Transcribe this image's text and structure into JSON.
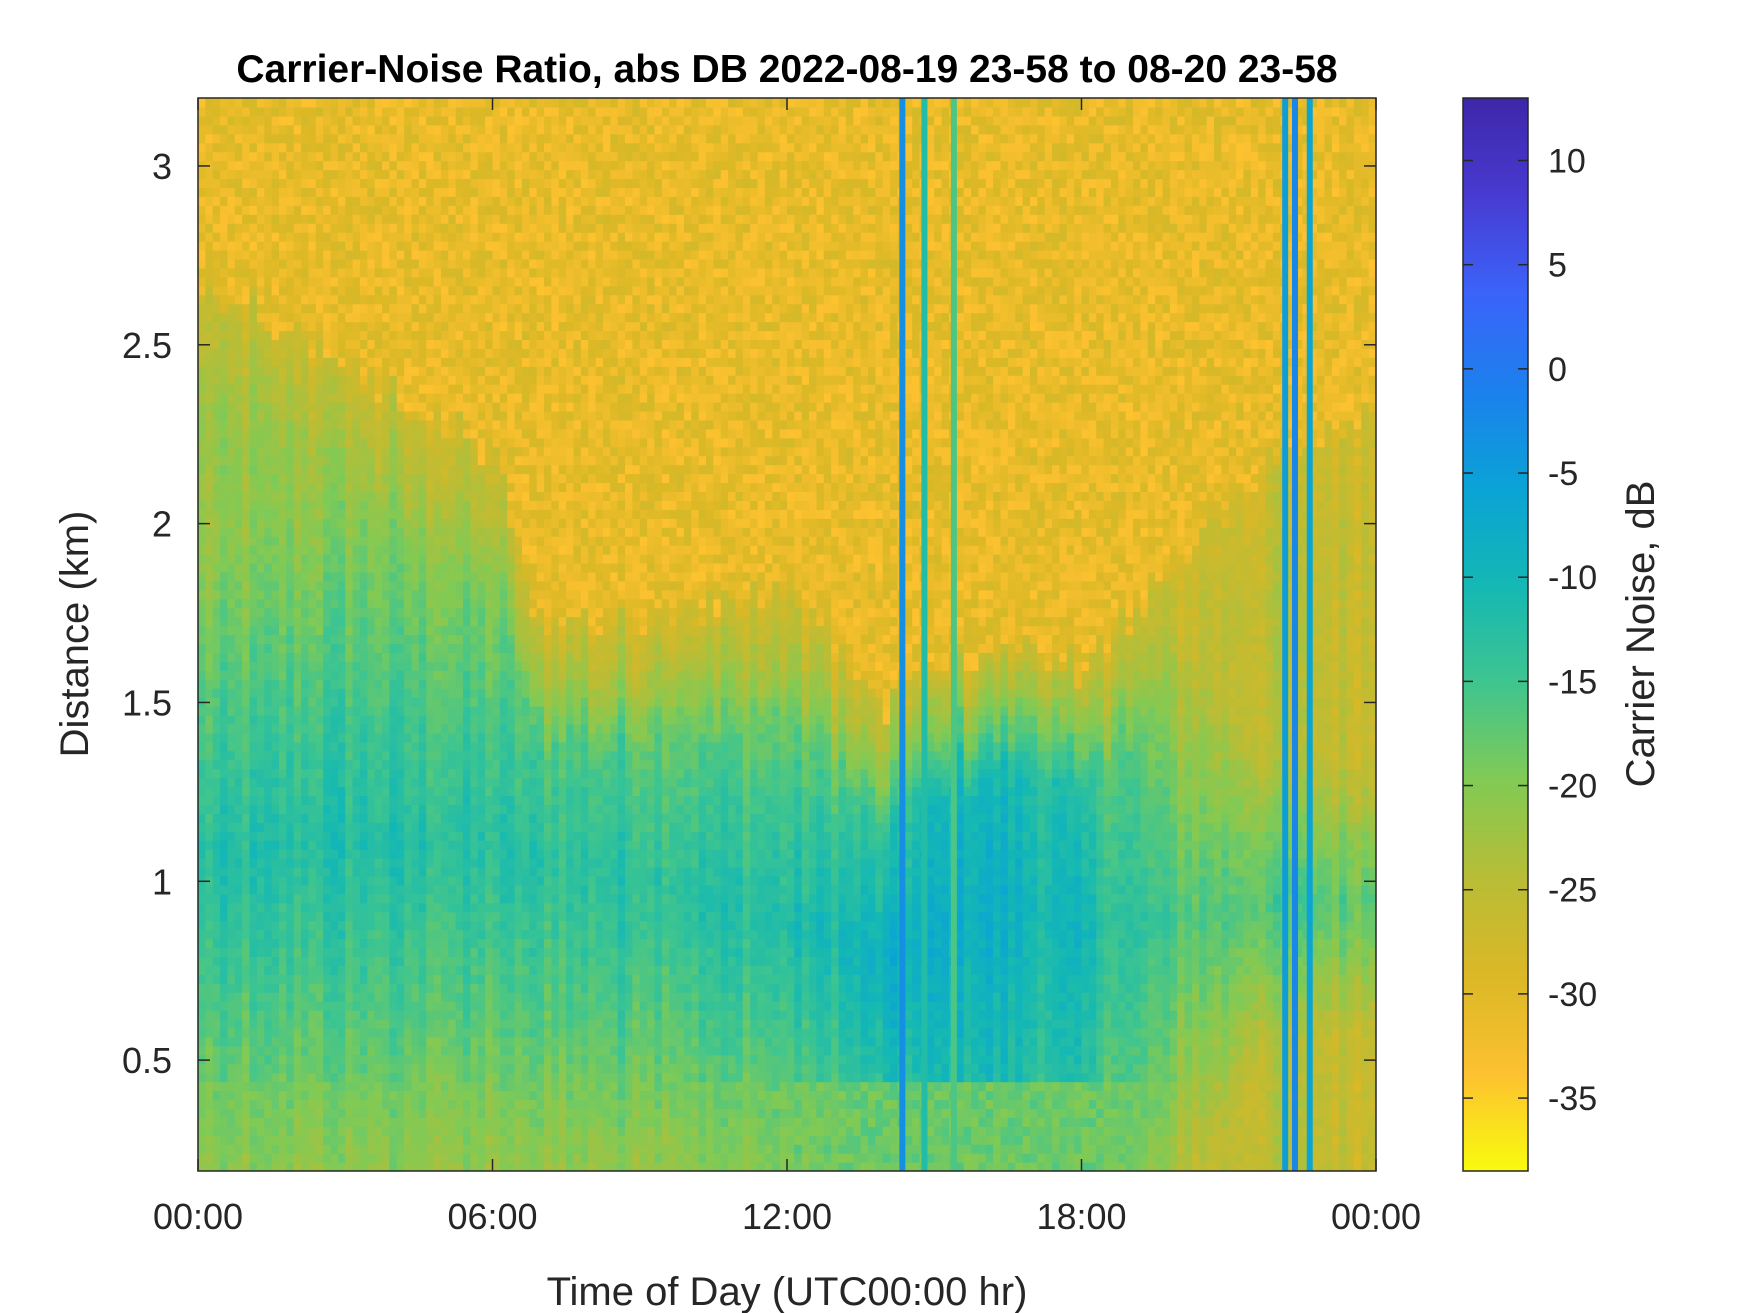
{
  "chart_data": {
    "type": "heatmap",
    "title": "Carrier-Noise Ratio, abs DB 2022-08-19 23-58 to 08-20 23-58",
    "xlabel": "Time of Day (UTC00:00 hr)",
    "ylabel": "Distance (km)",
    "xlim": [
      0,
      24
    ],
    "ylim": [
      0.19,
      3.19
    ],
    "x_ticks": [
      0,
      6,
      12,
      18,
      24
    ],
    "x_tick_labels": [
      "00:00",
      "06:00",
      "12:00",
      "18:00",
      "00:00"
    ],
    "y_ticks": [
      0.5,
      1,
      1.5,
      2,
      2.5,
      3
    ],
    "y_tick_labels": [
      "0.5",
      "1",
      "1.5",
      "2",
      "2.5",
      "3"
    ],
    "colorbar": {
      "label": "Carrier Noise, dB",
      "clim": [
        -38.5,
        13
      ],
      "ticks": [
        10,
        5,
        0,
        -5,
        -10,
        -15,
        -20,
        -25,
        -30,
        -35
      ],
      "tick_labels": [
        "10",
        "5",
        "0",
        "-5",
        "-10",
        "-15",
        "-20",
        "-25",
        "-30",
        "-35"
      ],
      "colormap": "parula-reversed",
      "colors": [
        "#f9fb0e",
        "#fcc130",
        "#dbb826",
        "#b8bd36",
        "#82ca54",
        "#3fc58f",
        "#14b8b4",
        "#0aa3d6",
        "#1c80ed",
        "#3b63fa",
        "#483bd1",
        "#3e26a8"
      ]
    },
    "grid": false,
    "approximate_profile": [
      {
        "time": 0,
        "noise_top_km": 2.7,
        "core_low_km": 0.7,
        "core_high_km": 1.4,
        "core_db": -13
      },
      {
        "time": 3,
        "noise_top_km": 2.45,
        "core_low_km": 0.75,
        "core_high_km": 1.5,
        "core_db": -12
      },
      {
        "time": 6,
        "noise_top_km": 2.2,
        "core_low_km": 0.75,
        "core_high_km": 1.45,
        "core_db": -13
      },
      {
        "time": 7,
        "noise_top_km": 1.7,
        "core_low_km": 0.7,
        "core_high_km": 1.4,
        "core_db": -13
      },
      {
        "time": 12,
        "noise_top_km": 1.8,
        "core_low_km": 0.6,
        "core_high_km": 1.2,
        "core_db": -12
      },
      {
        "time": 14,
        "noise_top_km": 1.5,
        "core_low_km": 0.5,
        "core_high_km": 1.0,
        "core_db": -9
      },
      {
        "time": 16,
        "noise_top_km": 1.65,
        "core_low_km": 0.4,
        "core_high_km": 1.5,
        "core_db": -8
      },
      {
        "time": 18,
        "noise_top_km": 1.6,
        "core_low_km": 0.35,
        "core_high_km": 1.4,
        "core_db": -11
      },
      {
        "time": 20,
        "noise_top_km": 1.9,
        "core_low_km": 0.6,
        "core_high_km": 1.2,
        "core_db": -16
      },
      {
        "time": 22,
        "noise_top_km": 2.2,
        "core_low_km": 0.8,
        "core_high_km": 1.1,
        "core_db": -16
      },
      {
        "time": 24,
        "noise_top_km": 2.3,
        "core_low_km": 0.8,
        "core_high_km": 1.1,
        "core_db": -17
      }
    ],
    "vertical_streaks": [
      {
        "time": 14.35,
        "db": -3
      },
      {
        "time": 14.8,
        "db": -12
      },
      {
        "time": 15.4,
        "db": -16
      },
      {
        "time": 22.15,
        "db": -5
      },
      {
        "time": 22.35,
        "db": -2
      },
      {
        "time": 22.65,
        "db": -6
      }
    ]
  }
}
